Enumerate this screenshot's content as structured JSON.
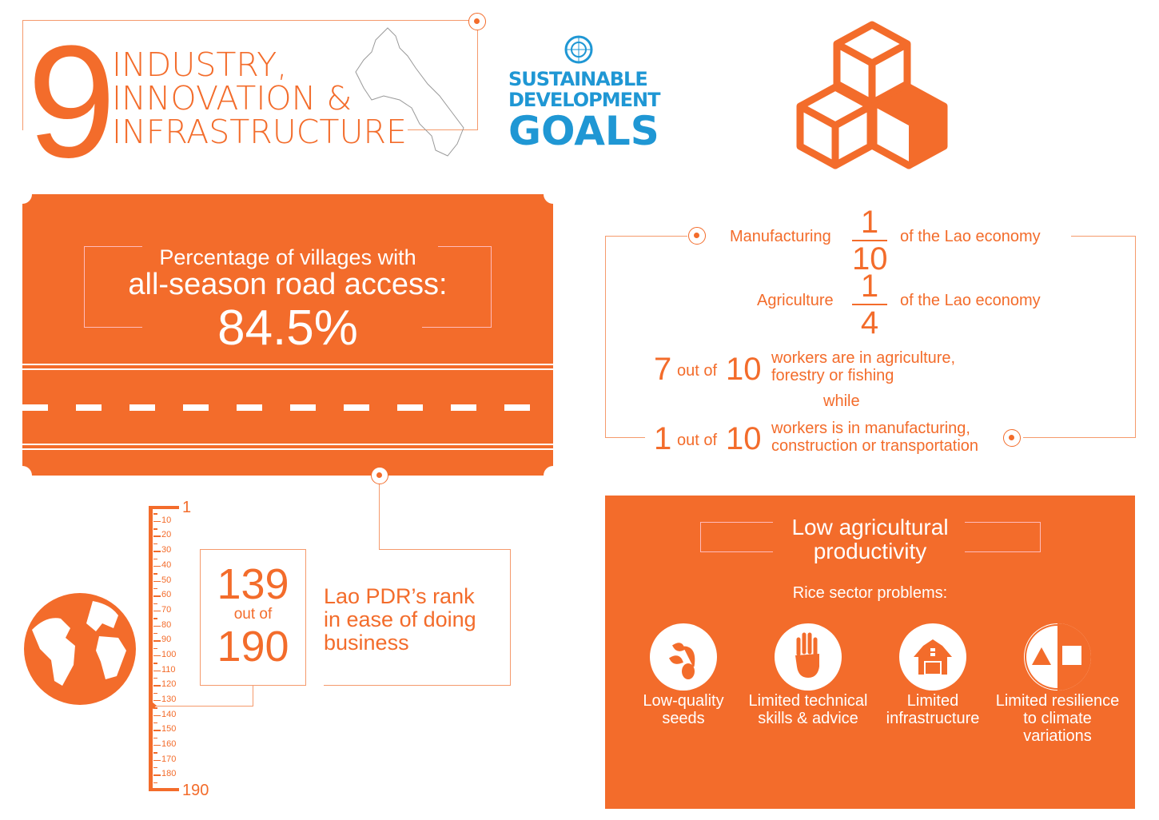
{
  "header": {
    "goal_number": "9",
    "title_lines": [
      "INDUSTRY,",
      "INNOVATION &",
      "INFRASTRUCTURE"
    ]
  },
  "sdg_logo": {
    "line1": "SUSTAINABLE",
    "line2": "DEVELOPMENT",
    "line3": "GOALS"
  },
  "road_card": {
    "line1": "Percentage of villages with",
    "line2": "all-season road access:",
    "value": "84.5%"
  },
  "economy": {
    "manufacturing": {
      "label": "Manufacturing",
      "numerator": "1",
      "denominator": "10",
      "suffix": "of the Lao economy"
    },
    "agriculture": {
      "label": "Agriculture",
      "numerator": "1",
      "denominator": "4",
      "suffix": "of the Lao economy"
    },
    "workers_agri": {
      "count": "7",
      "out_of": "out of",
      "total": "10",
      "text1": "workers are in agriculture,",
      "text2": "forestry or fishing"
    },
    "while": "while",
    "workers_manu": {
      "count": "1",
      "out_of": "out of",
      "total": "10",
      "text1": "workers is in manufacturing,",
      "text2": "construction or transportation"
    }
  },
  "rank": {
    "value": "139",
    "out_of": "out of",
    "total": "190",
    "label_lines": [
      "Lao PDR’s rank",
      "in ease of doing",
      "business"
    ],
    "scale_top": "1",
    "scale_bottom": "190",
    "scale_ticks": [
      "10",
      "20",
      "30",
      "40",
      "50",
      "60",
      "70",
      "80",
      "90",
      "100",
      "110",
      "120",
      "130",
      "140",
      "150",
      "160",
      "170",
      "180"
    ]
  },
  "productivity": {
    "title1": "Low agricultural",
    "title2": "productivity",
    "subtitle": "Rice sector problems:",
    "problems": [
      {
        "icon": "seedling-icon",
        "l1": "Low-quality",
        "l2": "seeds",
        "l3": ""
      },
      {
        "icon": "hand-icon",
        "l1": "Limited technical",
        "l2": "skills & advice",
        "l3": ""
      },
      {
        "icon": "barn-icon",
        "l1": "Limited",
        "l2": "infrastructure",
        "l3": ""
      },
      {
        "icon": "shapes-icon",
        "l1": "Limited resilience",
        "l2": "to climate",
        "l3": "variations"
      }
    ]
  },
  "colors": {
    "accent": "#f36c2b",
    "sdg_blue": "#1f97d4"
  }
}
